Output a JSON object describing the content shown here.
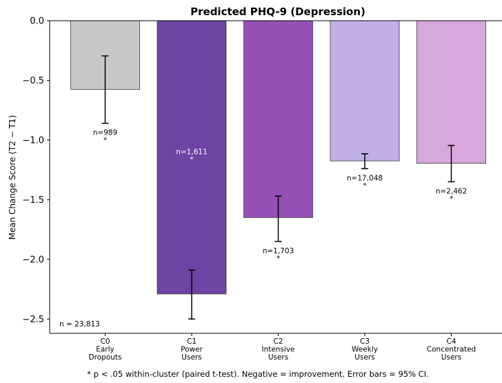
{
  "chart_data": {
    "type": "bar",
    "title": "Predicted PHQ-9 (Depression)",
    "ylabel": "Mean Change Score (T2 − T1)",
    "ylim": [
      -2.62,
      0.0
    ],
    "yticks": [
      0.0,
      -0.5,
      -1.0,
      -1.5,
      -2.0,
      -2.5
    ],
    "ytick_labels": [
      "0.0",
      "−0.5",
      "−1.0",
      "−1.5",
      "−2.0",
      "−2.5"
    ],
    "categories": [
      [
        "C0",
        "Early",
        "Dropouts"
      ],
      [
        "C1",
        "Power",
        "Users"
      ],
      [
        "C2",
        "Intensive",
        "Users"
      ],
      [
        "C3",
        "Weekly",
        "Users"
      ],
      [
        "C4",
        "Concentrated",
        "Users"
      ]
    ],
    "values": [
      -0.575,
      -2.29,
      -1.65,
      -1.175,
      -1.195
    ],
    "ci": [
      [
        -0.86,
        -0.295
      ],
      [
        -2.5,
        -2.09
      ],
      [
        -1.85,
        -1.47
      ],
      [
        -1.24,
        -1.115
      ],
      [
        -1.35,
        -1.045
      ]
    ],
    "n_labels": [
      "n=989",
      "n=1,611",
      "n=1,703",
      "n=17,048",
      "n=2,462"
    ],
    "sig_marks": [
      "*",
      "*",
      "*",
      "*",
      "*"
    ],
    "colors": [
      "#c8c8c8",
      "#6d43a3",
      "#9650b6",
      "#c0b0e4",
      "#d8a7de"
    ],
    "total_n_label": "n = 23,813",
    "footnote": "* p < .05 within-cluster (paired t-test). Negative = improvement. Error bars = 95% CI."
  }
}
